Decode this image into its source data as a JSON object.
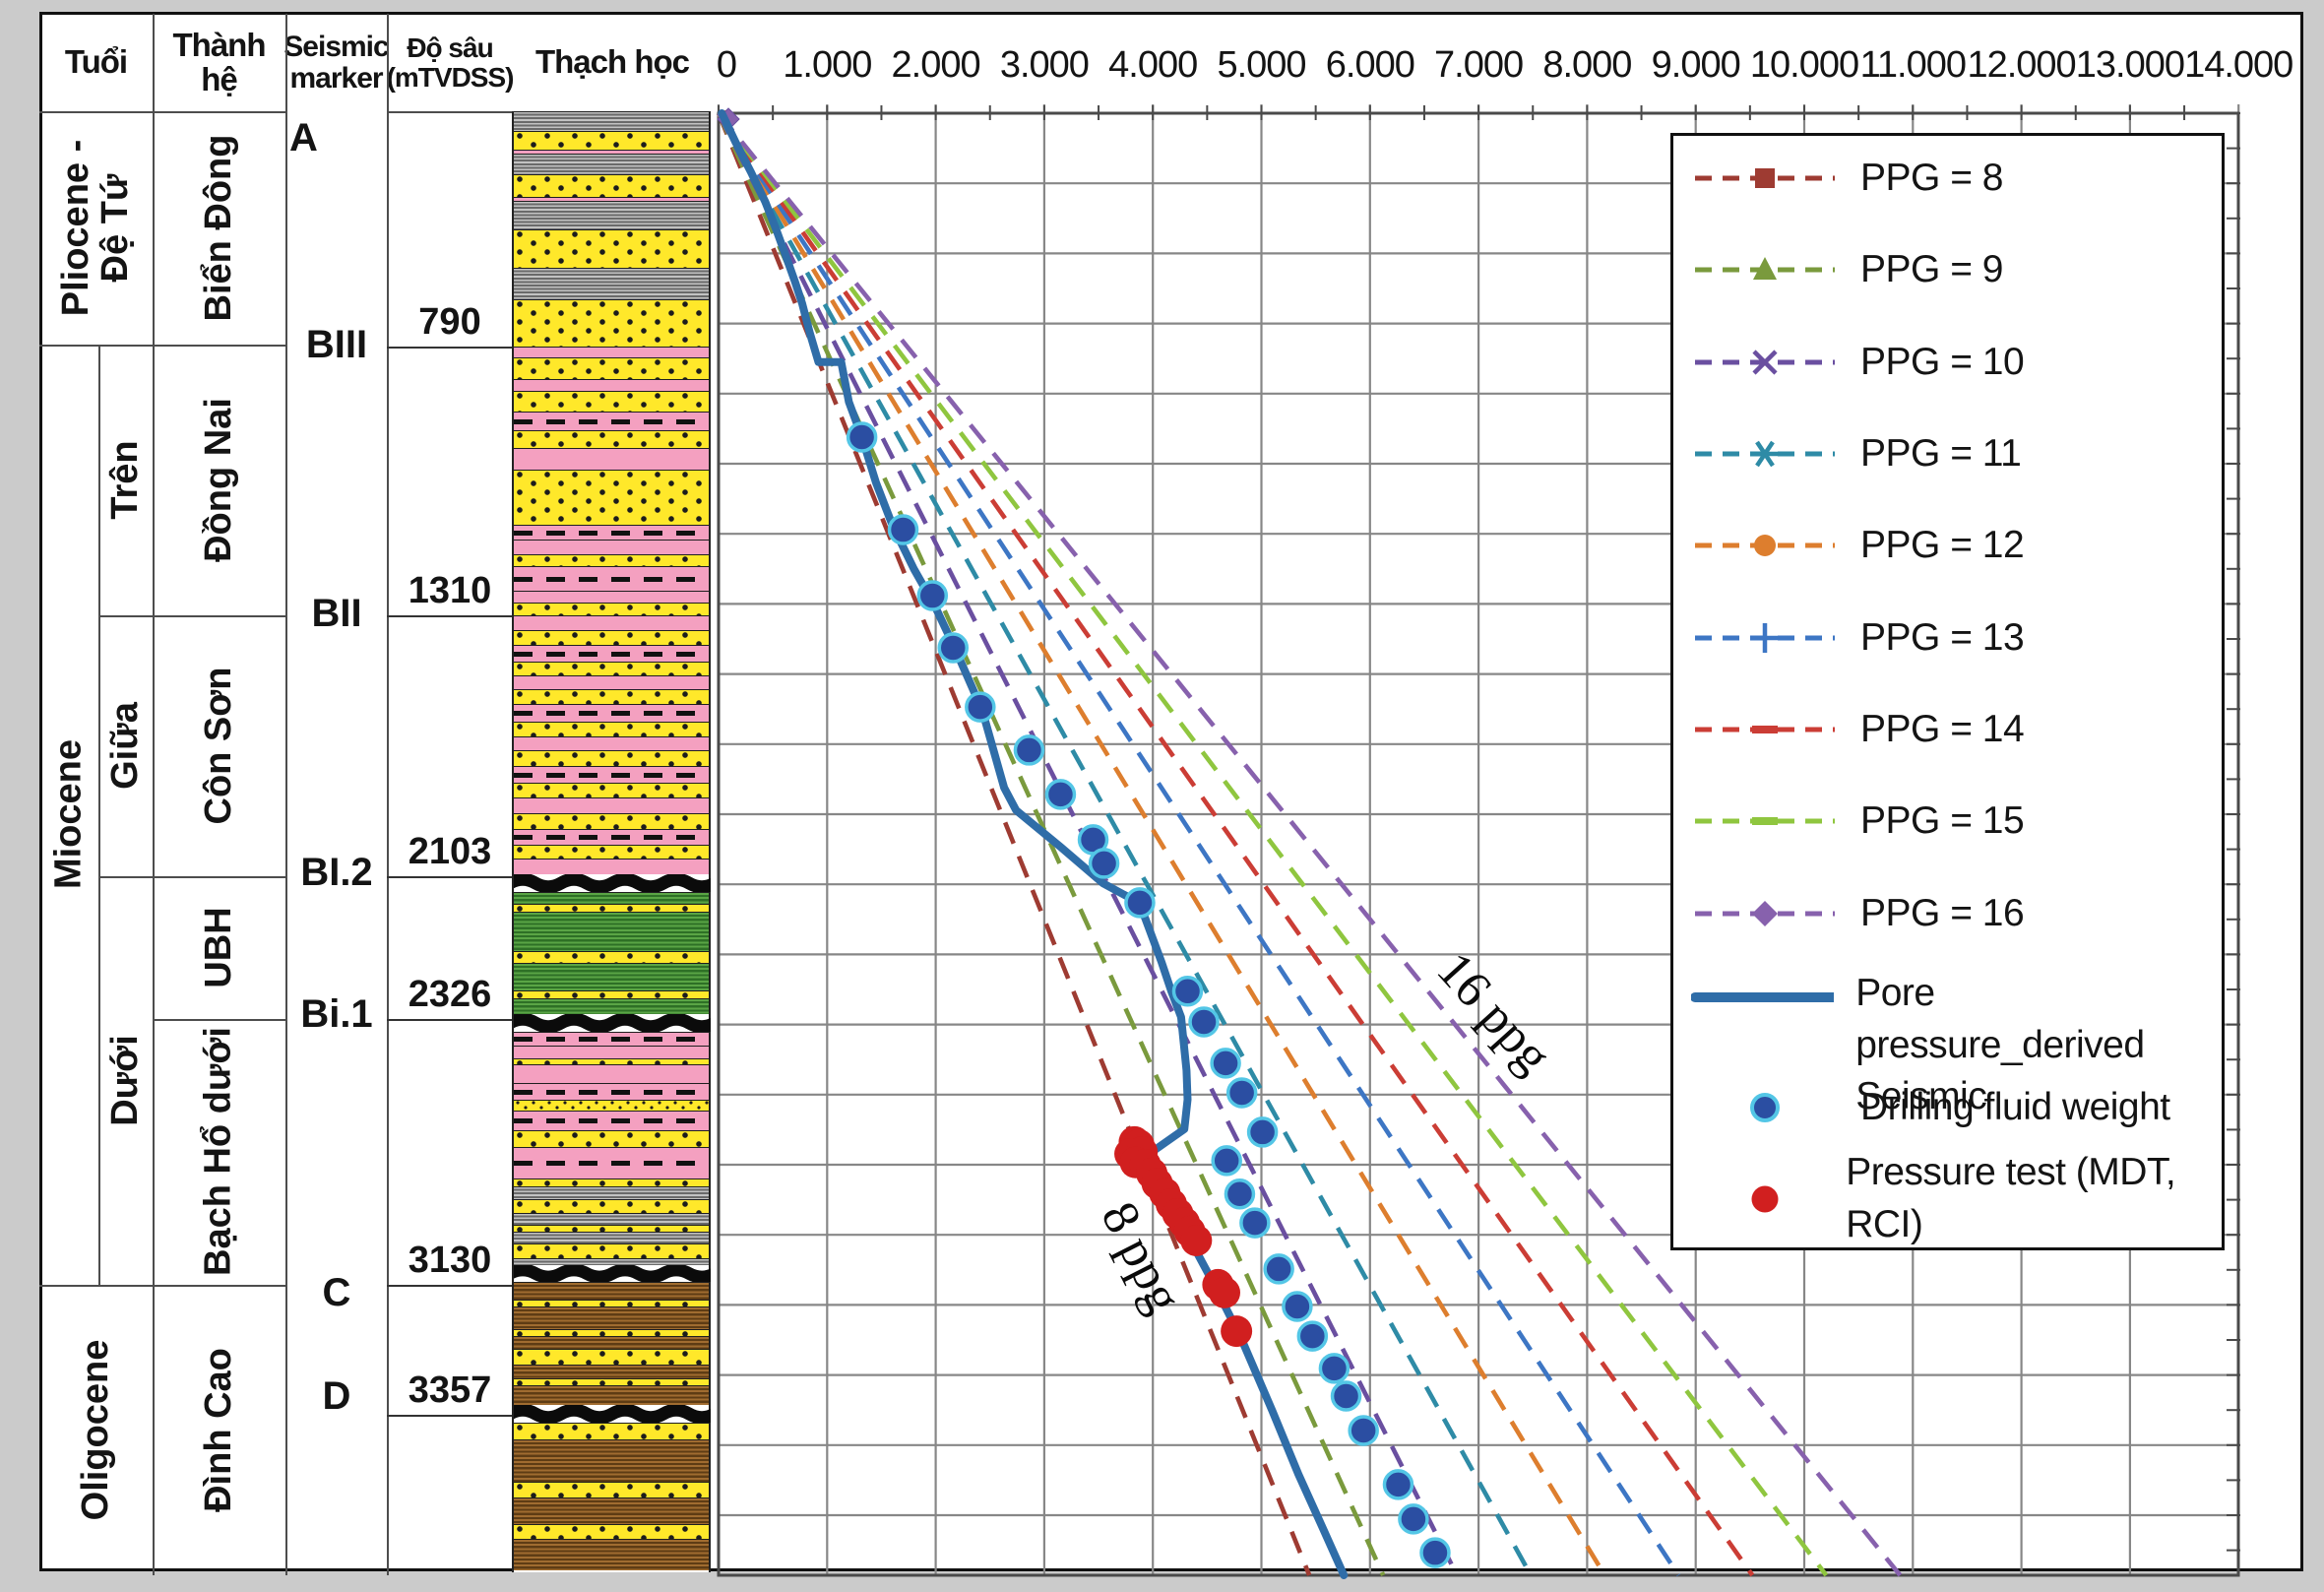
{
  "table": {
    "headers": {
      "age": "Tuổi",
      "formation": "Thành hệ",
      "marker": "Seismic marker",
      "depth": "Độ sâu (mTVDSS)",
      "lithology": "Thạch học"
    },
    "ages": [
      {
        "label": "Pliocene -\nĐệ Tứ"
      },
      {
        "label": "Miocene",
        "subs": [
          "Trên",
          "Giữa",
          "Dưới"
        ]
      },
      {
        "label": "Oligocene"
      }
    ],
    "formations": [
      "Biển Đông",
      "Đồng Nai",
      "Côn Sơn",
      "UBH",
      "Bạch Hổ dưới",
      "Đình Cao"
    ],
    "markers": [
      {
        "name": "A"
      },
      {
        "name": "BIII",
        "depth": 790
      },
      {
        "name": "BII",
        "depth": 1310
      },
      {
        "name": "BI.2",
        "depth": 2103
      },
      {
        "name": "Bi.1",
        "depth": 2326
      },
      {
        "name": "C",
        "depth": 3130
      },
      {
        "name": "D",
        "depth": 3357
      }
    ]
  },
  "legend": {
    "items": [
      {
        "label": "PPG = 8",
        "color": "#9E3B32",
        "marker": "square",
        "dashed": true
      },
      {
        "label": "PPG = 9",
        "color": "#7A9A3D",
        "marker": "triangle",
        "dashed": true
      },
      {
        "label": "PPG = 10",
        "color": "#6A4FA0",
        "marker": "x",
        "dashed": true
      },
      {
        "label": "PPG = 11",
        "color": "#2E8BA6",
        "marker": "asterisk",
        "dashed": true
      },
      {
        "label": "PPG = 12",
        "color": "#DD7E2E",
        "marker": "circle",
        "dashed": true
      },
      {
        "label": "PPG = 13",
        "color": "#3D76C4",
        "marker": "plus",
        "dashed": true
      },
      {
        "label": "PPG = 14",
        "color": "#CB3D35",
        "marker": "dash",
        "dashed": true
      },
      {
        "label": "PPG = 15",
        "color": "#8FC63F",
        "marker": "dash",
        "dashed": true
      },
      {
        "label": "PPG = 16",
        "color": "#8761AD",
        "marker": "diamond",
        "dashed": true
      },
      {
        "label": "Pore pressure_derived\nSeismic",
        "color": "#2F6DA8",
        "marker": "line",
        "dashed": false,
        "multiline": true
      },
      {
        "label": "Drilling fluid weight",
        "color": "#2B4EA2",
        "marker": "dot-blue",
        "dashed": false
      },
      {
        "label": "Pressure test (MDT, RCI)",
        "color": "#D11F1F",
        "marker": "dot-red",
        "dashed": false
      }
    ]
  },
  "chart_data": {
    "type": "line",
    "title": "",
    "xlabel": "",
    "ylabel": "",
    "x_ticks": [
      "0",
      "1.000",
      "2.000",
      "3.000",
      "4.000",
      "5.000",
      "6.000",
      "7.000",
      "8.000",
      "9.000",
      "10.000",
      "11.000",
      "12.000",
      "13.000",
      "14.000"
    ],
    "x_max_kpsi": 14.0,
    "depth_max_m": 3900,
    "psi_per_ppg_per_m": 0.1744,
    "grid": true,
    "legend_position": "right",
    "ppg_lines": [
      {
        "ppg": 8,
        "color": "#9E3B32"
      },
      {
        "ppg": 9,
        "color": "#7A9A3D"
      },
      {
        "ppg": 10,
        "color": "#6A4FA0"
      },
      {
        "ppg": 11,
        "color": "#2E8BA6"
      },
      {
        "ppg": 12,
        "color": "#DD7E2E"
      },
      {
        "ppg": 13,
        "color": "#3D76C4"
      },
      {
        "ppg": 14,
        "color": "#CB3D35"
      },
      {
        "ppg": 15,
        "color": "#8FC63F"
      },
      {
        "ppg": 16,
        "color": "#8761AD"
      }
    ],
    "seismic_curve": {
      "name": "Pore pressure_derived Seismic",
      "color": "#2F6DA8",
      "points_kpsi_depth": [
        [
          0.03,
          0
        ],
        [
          0.16,
          79
        ],
        [
          0.3,
          158
        ],
        [
          0.43,
          236
        ],
        [
          0.53,
          310
        ],
        [
          0.62,
          381
        ],
        [
          0.7,
          446
        ],
        [
          0.77,
          507
        ],
        [
          0.84,
          586
        ],
        [
          0.92,
          664
        ],
        [
          1.13,
          664
        ],
        [
          1.2,
          770
        ],
        [
          1.32,
          864
        ],
        [
          1.45,
          985
        ],
        [
          1.6,
          1098
        ],
        [
          1.8,
          1216
        ],
        [
          1.99,
          1313
        ],
        [
          2.19,
          1436
        ],
        [
          2.43,
          1594
        ],
        [
          2.63,
          1799
        ],
        [
          2.74,
          1859
        ],
        [
          3.15,
          1957
        ],
        [
          3.54,
          2054
        ],
        [
          3.87,
          2106
        ],
        [
          3.93,
          2148
        ],
        [
          4.08,
          2264
        ],
        [
          4.17,
          2342
        ],
        [
          4.26,
          2411
        ],
        [
          4.31,
          2553
        ],
        [
          4.32,
          2631
        ],
        [
          4.29,
          2710
        ],
        [
          3.99,
          2771
        ],
        [
          4.04,
          2823
        ],
        [
          4.2,
          2936
        ],
        [
          4.38,
          3025
        ],
        [
          4.58,
          3133
        ],
        [
          4.82,
          3272
        ],
        [
          5.1,
          3461
        ],
        [
          5.34,
          3630
        ],
        [
          5.56,
          3771
        ],
        [
          5.76,
          3900
        ]
      ]
    },
    "drilling_fluid_weight": {
      "name": "Drilling fluid weight",
      "fill": "#2B4EA2",
      "ring": "#53C6E6",
      "points_kpsi_depth": [
        [
          1.32,
          864
        ],
        [
          1.7,
          1111
        ],
        [
          1.97,
          1287
        ],
        [
          2.16,
          1426
        ],
        [
          2.41,
          1584
        ],
        [
          2.86,
          1699
        ],
        [
          3.15,
          1817
        ],
        [
          3.45,
          1938
        ],
        [
          3.55,
          2001
        ],
        [
          3.88,
          2106
        ],
        [
          4.32,
          2342
        ],
        [
          4.47,
          2424
        ],
        [
          4.67,
          2534
        ],
        [
          4.82,
          2613
        ],
        [
          5.01,
          2718
        ],
        [
          4.68,
          2794
        ],
        [
          4.8,
          2883
        ],
        [
          4.94,
          2960
        ],
        [
          5.16,
          3083
        ],
        [
          5.33,
          3183
        ],
        [
          5.47,
          3262
        ],
        [
          5.67,
          3348
        ],
        [
          5.78,
          3422
        ],
        [
          5.94,
          3514
        ],
        [
          6.26,
          3658
        ],
        [
          6.4,
          3750
        ],
        [
          6.6,
          3840
        ]
      ]
    },
    "pressure_test": {
      "name": "Pressure test (MDT, RCI)",
      "fill": "#D11F1F",
      "points_kpsi_depth": [
        [
          3.83,
          2744
        ],
        [
          3.87,
          2752
        ],
        [
          3.79,
          2776
        ],
        [
          3.9,
          2771
        ],
        [
          3.84,
          2799
        ],
        [
          3.93,
          2805
        ],
        [
          3.99,
          2828
        ],
        [
          4.04,
          2855
        ],
        [
          4.11,
          2881
        ],
        [
          4.17,
          2910
        ],
        [
          4.23,
          2936
        ],
        [
          4.29,
          2960
        ],
        [
          4.34,
          2983
        ],
        [
          4.4,
          3007
        ],
        [
          4.6,
          3125
        ],
        [
          4.66,
          3146
        ],
        [
          4.77,
          3249
        ]
      ]
    },
    "annotations": [
      {
        "text": "16 ppg",
        "p_kpsi": 7.03,
        "depth_m": 2429,
        "angle_deg": 48
      },
      {
        "text": "8 ppg",
        "p_kpsi": 3.76,
        "depth_m": 3072,
        "angle_deg": 63
      }
    ]
  },
  "lithology_bands": [
    [
      113,
      133,
      "gray"
    ],
    [
      133,
      152,
      "sand"
    ],
    [
      152,
      156,
      "pink"
    ],
    [
      156,
      177,
      "gray"
    ],
    [
      177,
      200,
      "sand"
    ],
    [
      200,
      204,
      "pink"
    ],
    [
      204,
      233,
      "gray"
    ],
    [
      233,
      272,
      "sand"
    ],
    [
      272,
      304,
      "gray"
    ],
    [
      304,
      352,
      "sand"
    ],
    [
      352,
      363,
      "pink"
    ],
    [
      363,
      385,
      "sand"
    ],
    [
      385,
      397,
      "pink"
    ],
    [
      397,
      418,
      "sand"
    ],
    [
      418,
      437,
      "pinkdash"
    ],
    [
      437,
      455,
      "sand"
    ],
    [
      455,
      477,
      "pink"
    ],
    [
      477,
      533,
      "sand"
    ],
    [
      533,
      548,
      "pinkdash"
    ],
    [
      548,
      563,
      "pink"
    ],
    [
      563,
      575,
      "sand"
    ],
    [
      575,
      600,
      "pinkdash"
    ],
    [
      600,
      612,
      "pink"
    ],
    [
      612,
      625,
      "sand"
    ],
    [
      625,
      640,
      "pink"
    ],
    [
      640,
      655,
      "sand"
    ],
    [
      655,
      672,
      "pinkdash"
    ],
    [
      672,
      686,
      "sand"
    ],
    [
      686,
      700,
      "pink"
    ],
    [
      700,
      715,
      "sand"
    ],
    [
      715,
      733,
      "pinkdash"
    ],
    [
      733,
      748,
      "sand"
    ],
    [
      748,
      762,
      "pink"
    ],
    [
      762,
      778,
      "sand"
    ],
    [
      778,
      795,
      "pinkdash"
    ],
    [
      795,
      810,
      "sand"
    ],
    [
      810,
      826,
      "pink"
    ],
    [
      826,
      842,
      "sand"
    ],
    [
      842,
      858,
      "pinkdash"
    ],
    [
      858,
      872,
      "sand"
    ],
    [
      872,
      888,
      "pink"
    ],
    [
      888,
      906,
      "wavy"
    ],
    [
      906,
      918,
      "green"
    ],
    [
      918,
      926,
      "sand"
    ],
    [
      926,
      966,
      "green"
    ],
    [
      966,
      978,
      "sand"
    ],
    [
      978,
      1006,
      "green"
    ],
    [
      1006,
      1014,
      "sand"
    ],
    [
      1014,
      1030,
      "green"
    ],
    [
      1030,
      1048,
      "wavy"
    ],
    [
      1048,
      1062,
      "pinkdash"
    ],
    [
      1062,
      1075,
      "pink"
    ],
    [
      1075,
      1081,
      "sand"
    ],
    [
      1081,
      1100,
      "pink"
    ],
    [
      1100,
      1117,
      "pinkdash"
    ],
    [
      1117,
      1128,
      "sandfine"
    ],
    [
      1128,
      1148,
      "pinkdash"
    ],
    [
      1148,
      1165,
      "sand"
    ],
    [
      1165,
      1197,
      "pinkdash"
    ],
    [
      1197,
      1205,
      "sand"
    ],
    [
      1205,
      1218,
      "gray"
    ],
    [
      1218,
      1232,
      "sand"
    ],
    [
      1232,
      1244,
      "gray"
    ],
    [
      1244,
      1251,
      "sand"
    ],
    [
      1251,
      1263,
      "gray"
    ],
    [
      1263,
      1278,
      "sand"
    ],
    [
      1278,
      1285,
      "gray"
    ],
    [
      1285,
      1302,
      "wavy"
    ],
    [
      1302,
      1320,
      "brown"
    ],
    [
      1320,
      1327,
      "sand"
    ],
    [
      1327,
      1350,
      "brown"
    ],
    [
      1350,
      1357,
      "sand"
    ],
    [
      1357,
      1370,
      "brown"
    ],
    [
      1370,
      1386,
      "sand"
    ],
    [
      1386,
      1400,
      "brown"
    ],
    [
      1400,
      1407,
      "sand"
    ],
    [
      1407,
      1427,
      "brown"
    ],
    [
      1427,
      1445,
      "wavy"
    ],
    [
      1445,
      1462,
      "sand"
    ],
    [
      1462,
      1505,
      "brown"
    ],
    [
      1505,
      1521,
      "sand"
    ],
    [
      1521,
      1548,
      "brown"
    ],
    [
      1548,
      1563,
      "sand"
    ],
    [
      1563,
      1595,
      "brown"
    ]
  ]
}
